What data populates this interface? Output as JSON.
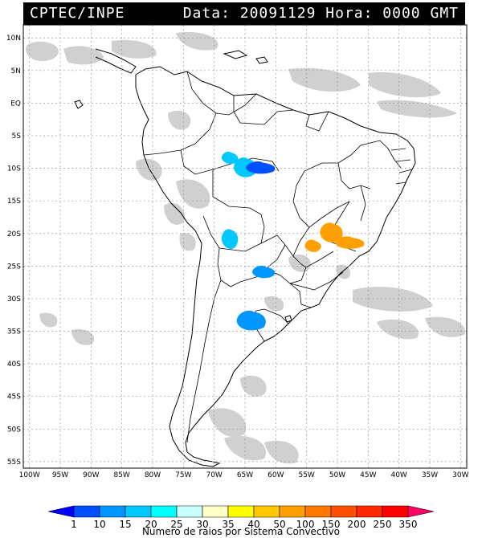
{
  "header": {
    "source": "CPTEC/INPE",
    "datetime": "Data: 20091129 Hora: 0000 GMT"
  },
  "map": {
    "lat_labels": [
      "10N",
      "5N",
      "EQ",
      "5S",
      "10S",
      "15S",
      "20S",
      "25S",
      "30S",
      "35S",
      "40S",
      "45S",
      "50S",
      "55S"
    ],
    "lon_labels": [
      "100W",
      "95W",
      "90W",
      "85W",
      "80W",
      "75W",
      "70W",
      "65W",
      "60W",
      "55W",
      "50W",
      "45W",
      "40W",
      "35W",
      "30W"
    ],
    "lat_values": [
      10,
      5,
      0,
      -5,
      -10,
      -15,
      -20,
      -25,
      -30,
      -35,
      -40,
      -45,
      -50,
      -55
    ],
    "lon_values": [
      -100,
      -95,
      -90,
      -85,
      -80,
      -75,
      -70,
      -65,
      -60,
      -55,
      -50,
      -45,
      -40,
      -35,
      -30
    ],
    "lat_range": [
      -56,
      12
    ],
    "lon_range": [
      -101,
      -29
    ],
    "colors": {
      "cloud": "#c8c8c8",
      "coast": "#000000",
      "grid": "#9a9a9a"
    },
    "convective_systems": [
      {
        "lat": -8.5,
        "lon": -67.5,
        "rays": 15
      },
      {
        "lat": -10.0,
        "lon": -65.0,
        "rays": 15
      },
      {
        "lat": -10.0,
        "lon": -62.5,
        "rays": 5
      },
      {
        "lat": -21.0,
        "lon": -67.5,
        "rays": 15
      },
      {
        "lat": -26.0,
        "lon": -62.0,
        "rays": 10
      },
      {
        "lat": -33.5,
        "lon": -64.0,
        "rays": 10
      },
      {
        "lat": -22.0,
        "lon": -54.0,
        "rays": 60
      },
      {
        "lat": -20.0,
        "lon": -51.0,
        "rays": 70
      },
      {
        "lat": -21.5,
        "lon": -48.0,
        "rays": 60
      }
    ]
  },
  "colorbar": {
    "labels": [
      "1",
      "10",
      "15",
      "20",
      "25",
      "30",
      "35",
      "40",
      "50",
      "100",
      "150",
      "200",
      "250",
      "350"
    ],
    "colors": [
      "#0000ff",
      "#0050ff",
      "#0096ff",
      "#00c8ff",
      "#00ffff",
      "#c8ffff",
      "#ffffc8",
      "#ffff00",
      "#ffc800",
      "#ffa000",
      "#ff7800",
      "#ff5000",
      "#ff2800",
      "#ff0000",
      "#ff0064"
    ],
    "caption": "Numero de raios por Sistema Convectivo"
  }
}
